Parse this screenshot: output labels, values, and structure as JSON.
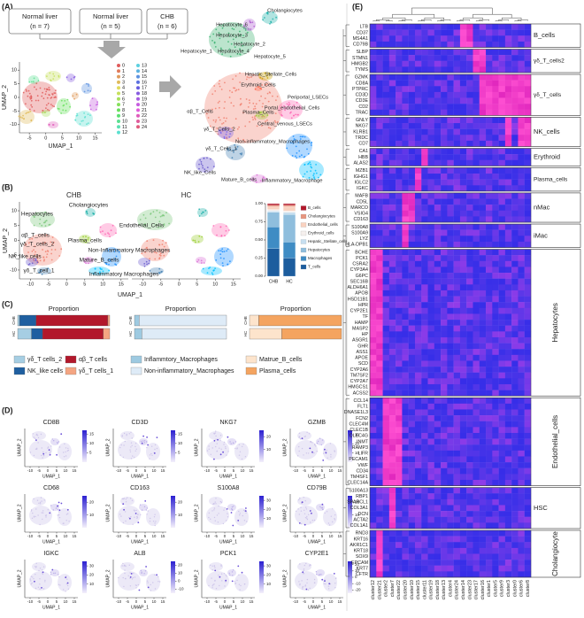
{
  "panel_a": {
    "label": "(A)",
    "groups": [
      {
        "name": "Normal liver",
        "n": "(n = 7)"
      },
      {
        "name": "Normal liver",
        "n": "(n = 5)"
      },
      {
        "name": "CHB",
        "n": "(n = 6)"
      }
    ],
    "umap": {
      "x_label": "UMAP_1",
      "y_label": "UMAP_2",
      "xlim": [
        -8,
        17
      ],
      "xticks": [
        -5,
        0,
        5,
        10,
        15
      ],
      "ylim": [
        -13,
        13
      ],
      "yticks": [
        -10,
        -5,
        0,
        5,
        10
      ]
    },
    "clusters": [
      "0",
      "1",
      "2",
      "3",
      "4",
      "5",
      "6",
      "7",
      "8",
      "9",
      "10",
      "11",
      "12",
      "13",
      "14",
      "15",
      "16",
      "17",
      "18",
      "19",
      "20",
      "21",
      "22",
      "23",
      "24"
    ],
    "cell_types": [
      "Cholangiocytes",
      "Hepatocyte_6",
      "Hepatocyte_3",
      "Hepatocyte_2",
      "Hepatocyte_1",
      "Hepatocyte_4",
      "Hepatocyte_5",
      "Hepatic_Stellate_Cells",
      "Erythroid_Cells",
      "Periportal_LSECs",
      "Portal_endothelial_Cells",
      "Plasma_Cells",
      "Central_venous_LSECs",
      "αβ_T_Cells",
      "γδ_T_Cells_2",
      "γδ_T_Cells_1",
      "NK_like_Cells",
      "Non-inflammatory_Macrophages",
      "Mature_B_cells",
      "Inflammatory_Macrophage"
    ]
  },
  "panel_b": {
    "label": "(B)",
    "groups": [
      "CHB",
      "HC"
    ],
    "x_label": "UMAP_1",
    "y_label": "UMAP_2",
    "xlim": [
      -13,
      17
    ],
    "xticks": [
      -10,
      -5,
      0,
      5,
      10,
      15
    ],
    "ylim": [
      -13,
      13
    ],
    "yticks": [
      -10,
      -5,
      0,
      5,
      10
    ],
    "cell_types": [
      "Hepatocytes",
      "Cholangiocytes",
      "αβ_T_cells",
      "γδ_T_cells_2",
      "NK_like cells",
      "γδ_T_cell_1",
      "Plasma_cells",
      "Endothelial_Cells",
      "Non-Inflammatory Macrophages",
      "Mature_B_cells",
      "Inflammatory Macrophages"
    ],
    "composition": {
      "type": "bar",
      "stacked": true,
      "categories": [
        "CHB",
        "HC"
      ],
      "ylim": [
        0,
        1
      ],
      "yticks": [
        {
          "value": 0,
          "label": "0.00"
        },
        {
          "value": 0.25,
          "label": "0.25"
        },
        {
          "value": 0.5,
          "label": "0.50"
        },
        {
          "value": 0.75,
          "label": "0.75"
        },
        {
          "value": 1,
          "label": "1.00"
        }
      ],
      "series": [
        {
          "name": "T_cells",
          "color": "#1d5d9e",
          "values": [
            0.38,
            0.25
          ]
        },
        {
          "name": "Macrophages",
          "color": "#3f8cc4",
          "values": [
            0.3,
            0.22
          ]
        },
        {
          "name": "Hepatocytes",
          "color": "#8fbedd",
          "values": [
            0.2,
            0.38
          ]
        },
        {
          "name": "Hepatic_Stellate_cells",
          "color": "#c7dff0",
          "values": [
            0.02,
            0.03
          ]
        },
        {
          "name": "Erythroid_cells",
          "color": "#f5f0ee",
          "values": [
            0.02,
            0.02
          ]
        },
        {
          "name": "Endothelial_cells",
          "color": "#f9d2c0",
          "values": [
            0.04,
            0.06
          ]
        },
        {
          "name": "Cholangiocytes",
          "color": "#e7967f",
          "values": [
            0.02,
            0.02
          ]
        },
        {
          "name": "B_cells",
          "color": "#b2182b",
          "values": [
            0.02,
            0.02
          ]
        }
      ]
    }
  },
  "panel_c": {
    "label": "(C)",
    "charts": [
      {
        "type": "bar",
        "orientation": "horizontal",
        "stacked": true,
        "title": "Proportion",
        "categories": [
          "CHB",
          "HC"
        ],
        "xlim": [
          0,
          1
        ],
        "series": [
          {
            "name": "γδ_T cells_2",
            "color": "#a6cee3",
            "values": [
              0.02,
              0.15
            ]
          },
          {
            "name": "NK_like cells",
            "color": "#1f5fa0",
            "values": [
              0.18,
              0.12
            ]
          },
          {
            "name": "αβ_T cells",
            "color": "#b2182b",
            "values": [
              0.78,
              0.66
            ]
          },
          {
            "name": "γδ_T cells_1",
            "color": "#f4a582",
            "values": [
              0.02,
              0.07
            ]
          }
        ]
      },
      {
        "type": "bar",
        "orientation": "horizontal",
        "stacked": true,
        "title": "Proportion",
        "categories": [
          "CHB",
          "HC"
        ],
        "xlim": [
          0,
          1
        ],
        "series": [
          {
            "name": "Inflammtory_Macrophages",
            "color": "#9ecae1",
            "values": [
              0.05,
              0.08
            ]
          },
          {
            "name": "Non-inflammatory_Macrophages",
            "color": "#deebf7",
            "values": [
              0.95,
              0.92
            ]
          }
        ]
      },
      {
        "type": "bar",
        "orientation": "horizontal",
        "stacked": true,
        "title": "Proportion",
        "categories": [
          "CHB",
          "HC"
        ],
        "xlim": [
          0,
          1
        ],
        "series": [
          {
            "name": "Matrue_B_cells",
            "color": "#fde4cc",
            "values": [
              0.1,
              0.35
            ]
          },
          {
            "name": "Plasma_cells",
            "color": "#f4a460",
            "values": [
              0.9,
              0.65
            ]
          }
        ]
      }
    ]
  },
  "panel_d": {
    "label": "(D)",
    "x_label": "UMAP_1",
    "y_label": "UMAP_2",
    "xlim": [
      -13,
      17
    ],
    "xticks": [
      -10,
      -5,
      0,
      5,
      10,
      15
    ],
    "features": [
      {
        "gene": "CD8B",
        "clim": [
          0,
          17
        ],
        "cticks": [
          5,
          10,
          15
        ]
      },
      {
        "gene": "CD3D",
        "clim": [
          0,
          17
        ],
        "cticks": [
          5,
          10,
          15
        ]
      },
      {
        "gene": "NKG7",
        "clim": [
          0,
          25
        ],
        "cticks": [
          10,
          20
        ]
      },
      {
        "gene": "GZMB",
        "clim": [
          0,
          35
        ],
        "cticks": [
          10,
          20,
          30
        ]
      },
      {
        "gene": "CD68",
        "clim": [
          0,
          25
        ],
        "cticks": [
          10,
          20
        ]
      },
      {
        "gene": "CD163",
        "clim": [
          0,
          25
        ],
        "cticks": [
          10,
          20
        ]
      },
      {
        "gene": "S100A8",
        "clim": [
          0,
          35
        ],
        "cticks": [
          10,
          20,
          30
        ]
      },
      {
        "gene": "CD79B",
        "clim": [
          0,
          25
        ],
        "cticks": [
          10,
          20
        ]
      },
      {
        "gene": "IGKC",
        "clim": [
          0,
          35
        ],
        "cticks": [
          10,
          20,
          30
        ]
      },
      {
        "gene": "ALB",
        "clim": [
          -15,
          25
        ],
        "cticks": [
          -10,
          0,
          10,
          20
        ]
      },
      {
        "gene": "PCK1",
        "clim": [
          0,
          35
        ],
        "cticks": [
          10,
          20,
          30
        ]
      },
      {
        "gene": "CYP2E1",
        "clim": [
          -25,
          25
        ],
        "cticks": [
          -20,
          -10,
          0,
          10,
          20
        ]
      }
    ]
  },
  "panel_e": {
    "label": "(E)",
    "clusters": [
      "cluster12",
      "cluster21",
      "cluster2",
      "cluster7",
      "cluster22",
      "cluster20",
      "cluster10",
      "cluster15",
      "cluster11",
      "cluster19",
      "cluster18",
      "cluster13",
      "cluster4",
      "cluster24",
      "cluster14",
      "cluster23",
      "cluster17",
      "cluster16",
      "cluster1",
      "cluster5",
      "cluster9",
      "cluster3",
      "cluster0",
      "cluster6",
      "cluster8"
    ],
    "groups": [
      {
        "name": "B_cells",
        "genes": [
          "LTB",
          "CD37",
          "MS4A1",
          "CD79B"
        ],
        "high": [
          "cluster14",
          "cluster23"
        ]
      },
      {
        "name": "γδ_T_cells2",
        "genes": [
          "SLBP",
          "STMN1",
          "HMGB2",
          "TYMS"
        ],
        "high": [
          "cluster17",
          "cluster16"
        ]
      },
      {
        "name": "γδ_T_cells",
        "genes": [
          "GZMK",
          "CD8A",
          "PTPRC",
          "CD3D",
          "CD3E",
          "CD2",
          "TRAC"
        ],
        "high": [
          "cluster16",
          "cluster1",
          "cluster5",
          "cluster9",
          "cluster3",
          "cluster0",
          "cluster6",
          "cluster8"
        ]
      },
      {
        "name": "NK_cells",
        "genes": [
          "GNLY",
          "NKG7",
          "KLRB1",
          "TRDC",
          "CD7"
        ],
        "high": [
          "cluster3",
          "cluster6",
          "cluster8"
        ]
      },
      {
        "name": "Erythroid",
        "genes": [
          "CA1",
          "HBB",
          "ALAS2"
        ],
        "high": [
          "cluster11"
        ]
      },
      {
        "name": "Plasma_cells",
        "genes": [
          "MZB1",
          "IGHG1",
          "IGLC2",
          "IGKC"
        ],
        "high": [
          "cluster15"
        ]
      },
      {
        "name": "nMac",
        "genes": [
          "MAFB",
          "CD5L",
          "MARCO",
          "VSIG4",
          "CD163"
        ],
        "high": [
          "cluster20",
          "cluster10"
        ]
      },
      {
        "name": "iMac",
        "genes": [
          "S100A8",
          "S100A9",
          "LYZ",
          "HLA-DPB1"
        ],
        "high": [
          "cluster20"
        ]
      },
      {
        "name": "Hepatocytes",
        "genes": [
          "BCHE",
          "PCK1",
          "CSRA2",
          "CYP3A4",
          "G6PC",
          "SEC16B",
          "ALDH6A1",
          "APOB",
          "HSD11B1",
          "HPR",
          "CYP2E1",
          "TF",
          "HAMP",
          "MASP2",
          "HP",
          "ASGR1",
          "GHR",
          "ASS1",
          "APOE",
          "SCD",
          "CYP2A6",
          "TM7SF2",
          "CYP2A7",
          "HMGCS1",
          "ACSS2"
        ],
        "high": [
          "cluster12",
          "cluster21"
        ]
      },
      {
        "name": "Endothelial_cells",
        "genes": [
          "CCL14",
          "FLT1",
          "DNASE1L3",
          "FCN2",
          "CLEC4M",
          "CLEC1B",
          "CLEC4G",
          "INMT",
          "RAMP3",
          "LIFR",
          "PECAM1",
          "VWF",
          "CD34",
          "TM4SF1",
          "CLEC14A"
        ],
        "high": [
          "cluster2",
          "cluster7",
          "cluster22"
        ]
      },
      {
        "name": "HSC",
        "genes": [
          "S100A13",
          "RBP1",
          "SPARCL1",
          "COL3A1",
          "DCN",
          "ACTA2",
          "COL1A1"
        ],
        "high": [
          "cluster7"
        ]
      },
      {
        "name": "Cholangiocyte",
        "genes": [
          "RND3",
          "KRT16",
          "AKR1C1",
          "KRT18",
          "SOX9",
          "EPCAM",
          "KRT7",
          "CFTR"
        ],
        "high": [
          "cluster21"
        ]
      }
    ]
  }
}
